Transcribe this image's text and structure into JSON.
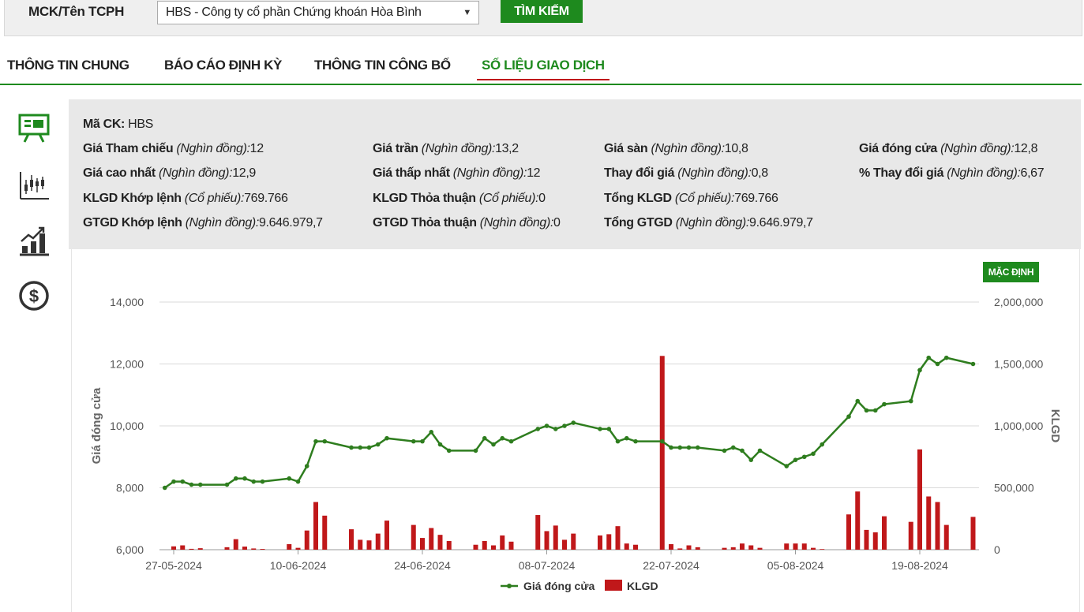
{
  "search": {
    "label": "MCK/Tên TCPH",
    "selected": "HBS - Công ty cổ phần Chứng khoán Hòa Bình",
    "button": "TÌM KIẾM"
  },
  "tabs": [
    {
      "label": "THÔNG TIN CHUNG"
    },
    {
      "label": "BÁO CÁO ĐỊNH KỲ"
    },
    {
      "label": "THÔNG TIN CÔNG BỐ"
    },
    {
      "label": "SỐ LIỆU GIAO DỊCH"
    }
  ],
  "side_icons": [
    "presentation-board-icon",
    "candlestick-chart-icon",
    "bar-growth-chart-icon",
    "dollar-coin-icon"
  ],
  "info": {
    "mack": {
      "label": "Mã CK:",
      "value": "HBS"
    },
    "gia_tham_chieu": {
      "label": "Giá Tham chiếu",
      "unit": "(Nghìn đồng):",
      "value": "12"
    },
    "gia_tran": {
      "label": "Giá trần",
      "unit": "(Nghìn đồng):",
      "value": "13,2"
    },
    "gia_san": {
      "label": "Giá sàn",
      "unit": "(Nghìn đồng):",
      "value": "10,8"
    },
    "gia_dong_cua": {
      "label": "Giá đóng cửa",
      "unit": "(Nghìn đồng):",
      "value": "12,8"
    },
    "gia_cao_nhat": {
      "label": "Giá cao nhất",
      "unit": "(Nghìn đồng):",
      "value": "12,9"
    },
    "gia_thap_nhat": {
      "label": "Giá thấp nhất",
      "unit": "(Nghìn đồng):",
      "value": "12"
    },
    "thay_doi_gia": {
      "label": "Thay đổi giá",
      "unit": "(Nghìn đồng):",
      "value": "0,8"
    },
    "pct_thay_doi": {
      "label": "% Thay đổi giá",
      "unit": "(Nghìn đồng):",
      "value": "6,67"
    },
    "klgd_khop": {
      "label": "KLGD Khớp lệnh",
      "unit": "(Cổ phiếu):",
      "value": "769.766"
    },
    "klgd_thoa_thuan": {
      "label": "KLGD Thỏa thuận",
      "unit": "(Cổ phiếu):",
      "value": "0"
    },
    "tong_klgd": {
      "label": "Tổng KLGD",
      "unit": "(Cổ phiếu):",
      "value": "769.766"
    },
    "gtgd_khop": {
      "label": "GTGD Khớp lệnh",
      "unit": "(Nghìn đồng):",
      "value": "9.646.979,7"
    },
    "gtgd_thoa_thuan": {
      "label": "GTGD Thỏa thuận",
      "unit": "(Nghìn đồng):",
      "value": "0"
    },
    "tong_gtgd": {
      "label": "Tổng GTGD",
      "unit": "(Nghìn đồng):",
      "value": "9.646.979,7"
    }
  },
  "chart_button": "MẶC ĐỊNH",
  "colors": {
    "accent": "#1e8a1e",
    "bar": "#c0181a",
    "line": "#2e7d1e"
  },
  "chart_data": {
    "type": "line+bar",
    "x_start": "2024-05-27",
    "x_tick_labels": [
      "27-05-2024",
      "10-06-2024",
      "24-06-2024",
      "08-07-2024",
      "22-07-2024",
      "05-08-2024",
      "19-08-2024"
    ],
    "y_left": {
      "label": "Giá đóng cửa",
      "ticks": [
        "6,000",
        "8,000",
        "10,000",
        "12,000",
        "14,000"
      ],
      "range": [
        6000,
        14000
      ]
    },
    "y_right": {
      "label": "KLGD",
      "ticks": [
        "0",
        "500,000",
        "1,000,000",
        "1,500,000",
        "2,000,000"
      ],
      "range": [
        0,
        2000000
      ]
    },
    "legend": [
      {
        "name": "Giá đóng cửa"
      },
      {
        "name": "KLGD"
      }
    ],
    "price": [
      [
        -1,
        8000
      ],
      [
        0,
        8200
      ],
      [
        1,
        8200
      ],
      [
        2,
        8100
      ],
      [
        3,
        8100
      ],
      [
        6,
        8100
      ],
      [
        7,
        8300
      ],
      [
        8,
        8300
      ],
      [
        9,
        8200
      ],
      [
        10,
        8200
      ],
      [
        13,
        8300
      ],
      [
        14,
        8200
      ],
      [
        15,
        8700
      ],
      [
        16,
        9500
      ],
      [
        17,
        9500
      ],
      [
        20,
        9300
      ],
      [
        21,
        9300
      ],
      [
        22,
        9300
      ],
      [
        23,
        9400
      ],
      [
        24,
        9600
      ],
      [
        27,
        9500
      ],
      [
        28,
        9500
      ],
      [
        29,
        9800
      ],
      [
        30,
        9400
      ],
      [
        31,
        9200
      ],
      [
        34,
        9200
      ],
      [
        35,
        9600
      ],
      [
        36,
        9400
      ],
      [
        37,
        9600
      ],
      [
        38,
        9500
      ],
      [
        41,
        9900
      ],
      [
        42,
        10000
      ],
      [
        43,
        9900
      ],
      [
        44,
        10000
      ],
      [
        45,
        10100
      ],
      [
        48,
        9900
      ],
      [
        49,
        9900
      ],
      [
        50,
        9500
      ],
      [
        51,
        9600
      ],
      [
        52,
        9500
      ],
      [
        55,
        9500
      ],
      [
        56,
        9300
      ],
      [
        57,
        9300
      ],
      [
        58,
        9300
      ],
      [
        59,
        9300
      ],
      [
        62,
        9200
      ],
      [
        63,
        9300
      ],
      [
        64,
        9200
      ],
      [
        65,
        8900
      ],
      [
        66,
        9200
      ],
      [
        69,
        8700
      ],
      [
        70,
        8900
      ],
      [
        71,
        9000
      ],
      [
        72,
        9100
      ],
      [
        73,
        9400
      ],
      [
        76,
        10300
      ],
      [
        77,
        10800
      ],
      [
        78,
        10500
      ],
      [
        79,
        10500
      ],
      [
        80,
        10700
      ],
      [
        83,
        10800
      ],
      [
        84,
        11800
      ],
      [
        85,
        12200
      ],
      [
        86,
        12000
      ],
      [
        87,
        12200
      ],
      [
        90,
        12000
      ]
    ],
    "volume": [
      [
        0,
        27000
      ],
      [
        1,
        35000
      ],
      [
        2,
        7000
      ],
      [
        3,
        12000
      ],
      [
        6,
        20000
      ],
      [
        7,
        85000
      ],
      [
        8,
        25000
      ],
      [
        9,
        10000
      ],
      [
        10,
        6000
      ],
      [
        13,
        45000
      ],
      [
        14,
        15000
      ],
      [
        15,
        155000
      ],
      [
        16,
        385000
      ],
      [
        17,
        275000
      ],
      [
        20,
        165000
      ],
      [
        21,
        80000
      ],
      [
        22,
        75000
      ],
      [
        23,
        130000
      ],
      [
        24,
        235000
      ],
      [
        27,
        200000
      ],
      [
        28,
        95000
      ],
      [
        29,
        175000
      ],
      [
        30,
        120000
      ],
      [
        31,
        70000
      ],
      [
        34,
        40000
      ],
      [
        35,
        70000
      ],
      [
        36,
        35000
      ],
      [
        37,
        115000
      ],
      [
        38,
        65000
      ],
      [
        41,
        280000
      ],
      [
        42,
        150000
      ],
      [
        43,
        195000
      ],
      [
        44,
        80000
      ],
      [
        45,
        130000
      ],
      [
        48,
        115000
      ],
      [
        49,
        125000
      ],
      [
        50,
        190000
      ],
      [
        51,
        50000
      ],
      [
        52,
        40000
      ],
      [
        55,
        1565000
      ],
      [
        56,
        45000
      ],
      [
        57,
        10000
      ],
      [
        58,
        35000
      ],
      [
        59,
        20000
      ],
      [
        62,
        15000
      ],
      [
        63,
        20000
      ],
      [
        64,
        50000
      ],
      [
        65,
        35000
      ],
      [
        66,
        15000
      ],
      [
        69,
        50000
      ],
      [
        70,
        50000
      ],
      [
        71,
        50000
      ],
      [
        72,
        15000
      ],
      [
        73,
        5000
      ],
      [
        76,
        285000
      ],
      [
        77,
        470000
      ],
      [
        78,
        160000
      ],
      [
        79,
        140000
      ],
      [
        80,
        270000
      ],
      [
        83,
        225000
      ],
      [
        84,
        810000
      ],
      [
        85,
        430000
      ],
      [
        86,
        385000
      ],
      [
        87,
        200000
      ],
      [
        90,
        265000
      ]
    ]
  }
}
